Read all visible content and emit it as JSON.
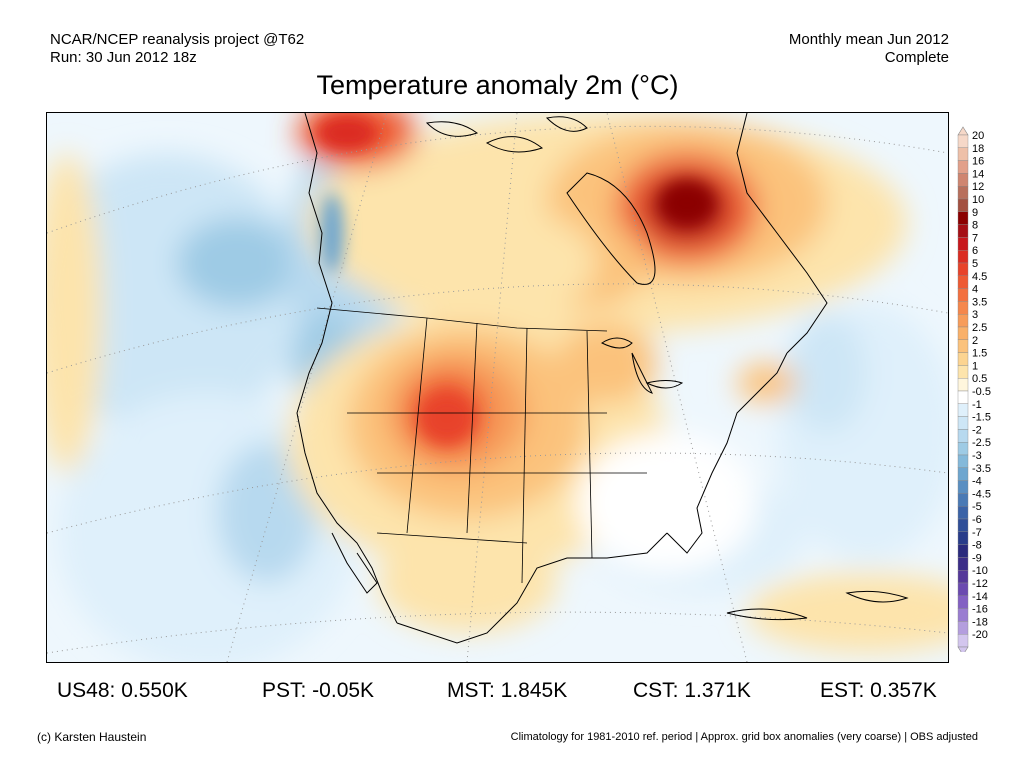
{
  "header": {
    "line1_left": "NCAR/NCEP reanalysis project @T62",
    "line2_left": "Run: 30 Jun 2012 18z",
    "line1_right": "Monthly mean Jun 2012",
    "line2_right": "Complete"
  },
  "title": "Temperature anomaly 2m (°C)",
  "legend": {
    "labels": [
      "20",
      "18",
      "16",
      "14",
      "12",
      "10",
      "9",
      "8",
      "7",
      "6",
      "5",
      "4.5",
      "4",
      "3.5",
      "3",
      "2.5",
      "2",
      "1.5",
      "1",
      "0.5",
      "-0.5",
      "-1",
      "-1.5",
      "-2",
      "-2.5",
      "-3",
      "-3.5",
      "-4",
      "-4.5",
      "-5",
      "-6",
      "-7",
      "-8",
      "-9",
      "-10",
      "-12",
      "-14",
      "-16",
      "-18",
      "-20"
    ],
    "colors": [
      "#f6d8c8",
      "#eec0a8",
      "#e2a08a",
      "#cf8570",
      "#b86f5c",
      "#a35040",
      "#8b0000",
      "#a50f15",
      "#c8171c",
      "#db2c22",
      "#e8432a",
      "#ee5a33",
      "#f3703f",
      "#f5874c",
      "#f79c5a",
      "#f9b069",
      "#fbc27c",
      "#fcd491",
      "#fde4ac",
      "#fff6dd",
      "#ffffff",
      "#dff0fb",
      "#cde6f6",
      "#b7d9ef",
      "#9ecbe5",
      "#84b9da",
      "#6ea6cf",
      "#5a8fc2",
      "#4a7ab5",
      "#3b63a7",
      "#2f4e98",
      "#283c8a",
      "#2a2a7d",
      "#3b2d88",
      "#55389a",
      "#6b4ab0",
      "#8360c3",
      "#9a7dd1",
      "#b49ede",
      "#d3c6ee"
    ]
  },
  "stats": [
    {
      "label": "US48: 0.550K"
    },
    {
      "label": "PST: -0.05K"
    },
    {
      "label": "MST: 1.845K"
    },
    {
      "label": "CST: 1.371K"
    },
    {
      "label": "EST: 0.357K"
    }
  ],
  "footer": {
    "credit": "(c) Karsten Haustein",
    "note": "Climatology for 1981-2010 ref. period | Approx. grid box anomalies (very coarse) | OBS adjusted"
  }
}
